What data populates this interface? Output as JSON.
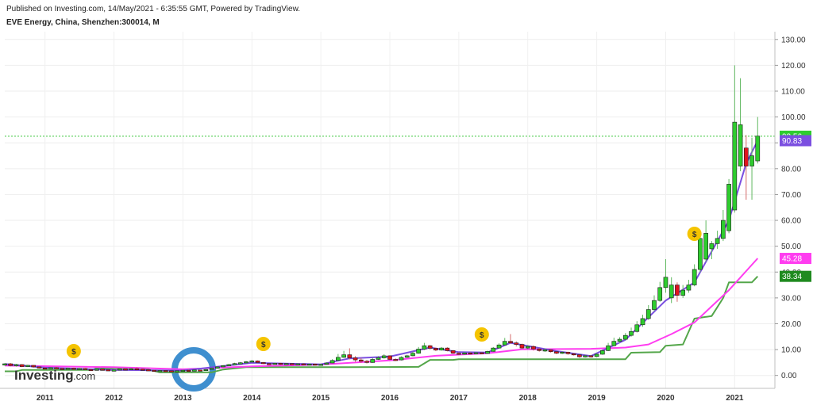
{
  "header": {
    "published": "Published on Investing.com, 14/May/2021 - 6:35:55 GMT, Powered by TradingView.",
    "symbol": "EVE Energy, China, Shenzhen:300014, M"
  },
  "logo": {
    "main": "Investing",
    "suffix": ".com"
  },
  "chart_data": {
    "type": "candlestick",
    "ylim": [
      -5,
      133
    ],
    "x_range": [
      "2010-06",
      "2021-08"
    ],
    "x_ticks": [
      {
        "date": "2011-01",
        "label": "2011"
      },
      {
        "date": "2012-01",
        "label": "2012"
      },
      {
        "date": "2013-01",
        "label": "2013"
      },
      {
        "date": "2014-01",
        "label": "2014"
      },
      {
        "date": "2015-01",
        "label": "2015"
      },
      {
        "date": "2016-01",
        "label": "2016"
      },
      {
        "date": "2017-01",
        "label": "2017"
      },
      {
        "date": "2018-01",
        "label": "2018"
      },
      {
        "date": "2019-01",
        "label": "2019"
      },
      {
        "date": "2020-01",
        "label": "2020"
      },
      {
        "date": "2021-01",
        "label": "2021"
      }
    ],
    "y_ticks": [
      {
        "value": 0,
        "label": "0.00"
      },
      {
        "value": 10,
        "label": "10.00"
      },
      {
        "value": 20,
        "label": "20.00"
      },
      {
        "value": 30,
        "label": "30.00"
      },
      {
        "value": 40,
        "label": "40.00"
      },
      {
        "value": 50,
        "label": "50.00"
      },
      {
        "value": 60,
        "label": "60.00"
      },
      {
        "value": 70,
        "label": "70.00"
      },
      {
        "value": 80,
        "label": "80.00"
      },
      {
        "value": 90,
        "label": "90.00"
      },
      {
        "value": 100,
        "label": "100.00"
      },
      {
        "value": 110,
        "label": "110.00"
      },
      {
        "value": 120,
        "label": "120.00"
      },
      {
        "value": 130,
        "label": "130.00"
      }
    ],
    "colors": {
      "up": "#2ecc2e",
      "down": "#e0141e",
      "ma_fast": "#7b4fe0",
      "ma_mid": "#ff3df0",
      "ma_slow": "#54a64a",
      "price_line": "#3cc83c"
    },
    "candles": [
      [
        "2010-06",
        4,
        4.5,
        4.7,
        3.8
      ],
      [
        "2010-07",
        4.5,
        3.8,
        4.8,
        3.5
      ],
      [
        "2010-08",
        3.8,
        4.2,
        4.5,
        3.4
      ],
      [
        "2010-09",
        4.2,
        3.4,
        4.4,
        3.2
      ],
      [
        "2010-10",
        3.4,
        3.9,
        4.1,
        3.2
      ],
      [
        "2010-11",
        3.9,
        3.3,
        4.0,
        3.0
      ],
      [
        "2010-12",
        3.3,
        2.9,
        3.5,
        2.7
      ],
      [
        "2011-01",
        2.9,
        2.6,
        3.1,
        2.4
      ],
      [
        "2011-02",
        2.6,
        3.0,
        3.2,
        2.5
      ],
      [
        "2011-03",
        3.0,
        2.7,
        3.3,
        2.5
      ],
      [
        "2011-04",
        2.7,
        2.5,
        3.0,
        2.3
      ],
      [
        "2011-05",
        2.5,
        2.8,
        3.0,
        2.3
      ],
      [
        "2011-06",
        2.8,
        2.4,
        3.0,
        2.2
      ],
      [
        "2011-07",
        2.4,
        2.7,
        2.9,
        2.2
      ],
      [
        "2011-08",
        2.7,
        2.3,
        2.9,
        2.1
      ],
      [
        "2011-09",
        2.3,
        2.1,
        2.5,
        1.9
      ],
      [
        "2011-10",
        2.1,
        2.4,
        2.6,
        1.9
      ],
      [
        "2011-11",
        2.4,
        2.2,
        2.6,
        2.0
      ],
      [
        "2011-12",
        2.2,
        1.9,
        2.4,
        1.8
      ],
      [
        "2012-01",
        1.9,
        2.1,
        2.3,
        1.8
      ],
      [
        "2012-02",
        2.1,
        2.5,
        2.7,
        2.0
      ],
      [
        "2012-03",
        2.5,
        2.3,
        2.7,
        2.1
      ],
      [
        "2012-04",
        2.3,
        2.6,
        2.9,
        2.2
      ],
      [
        "2012-05",
        2.6,
        2.4,
        3.2,
        2.2
      ],
      [
        "2012-06",
        2.4,
        2.2,
        2.6,
        2.0
      ],
      [
        "2012-07",
        2.2,
        2.0,
        2.4,
        1.8
      ],
      [
        "2012-08",
        2.0,
        1.7,
        2.2,
        1.6
      ],
      [
        "2012-09",
        1.7,
        1.9,
        2.1,
        1.6
      ],
      [
        "2012-10",
        1.9,
        1.8,
        2.0,
        1.6
      ],
      [
        "2012-11",
        1.8,
        1.5,
        1.9,
        1.4
      ],
      [
        "2012-12",
        1.5,
        1.8,
        1.9,
        1.4
      ],
      [
        "2013-01",
        1.8,
        2.0,
        2.2,
        1.7
      ],
      [
        "2013-02",
        2.0,
        1.9,
        2.3,
        1.7
      ],
      [
        "2013-03",
        1.9,
        2.1,
        2.3,
        1.8
      ],
      [
        "2013-04",
        2.1,
        1.9,
        2.2,
        1.7
      ],
      [
        "2013-05",
        1.9,
        2.3,
        2.5,
        1.8
      ],
      [
        "2013-06",
        2.3,
        2.8,
        3.0,
        2.2
      ],
      [
        "2013-07",
        2.8,
        3.3,
        3.5,
        2.7
      ],
      [
        "2013-08",
        3.3,
        3.8,
        4.0,
        3.2
      ],
      [
        "2013-09",
        3.8,
        4.2,
        4.5,
        3.6
      ],
      [
        "2013-10",
        4.2,
        4.6,
        4.9,
        4.0
      ],
      [
        "2013-11",
        4.6,
        4.9,
        5.2,
        4.4
      ],
      [
        "2013-12",
        4.9,
        5.3,
        5.6,
        4.7
      ],
      [
        "2014-01",
        5.3,
        5.6,
        6.0,
        5.1
      ],
      [
        "2014-02",
        5.6,
        5.0,
        5.8,
        4.8
      ],
      [
        "2014-03",
        5.0,
        4.6,
        5.2,
        4.4
      ],
      [
        "2014-04",
        4.6,
        4.4,
        4.8,
        4.2
      ],
      [
        "2014-05",
        4.4,
        4.7,
        4.9,
        4.2
      ],
      [
        "2014-06",
        4.7,
        4.3,
        4.9,
        4.1
      ],
      [
        "2014-07",
        4.3,
        4.6,
        4.8,
        4.1
      ],
      [
        "2014-08",
        4.6,
        4.2,
        4.8,
        4.0
      ],
      [
        "2014-09",
        4.2,
        4.5,
        4.7,
        4.0
      ],
      [
        "2014-10",
        4.5,
        4.1,
        4.7,
        3.9
      ],
      [
        "2014-11",
        4.1,
        4.4,
        4.6,
        3.9
      ],
      [
        "2014-12",
        4.4,
        4.0,
        4.6,
        3.8
      ],
      [
        "2015-01",
        4.0,
        4.3,
        4.5,
        3.8
      ],
      [
        "2015-02",
        4.3,
        4.8,
        5.1,
        4.2
      ],
      [
        "2015-03",
        4.8,
        5.8,
        6.3,
        4.7
      ],
      [
        "2015-04",
        5.8,
        7.0,
        8.3,
        5.6
      ],
      [
        "2015-05",
        7.0,
        8.0,
        9.5,
        6.8
      ],
      [
        "2015-06",
        8.0,
        6.8,
        10.5,
        6.2
      ],
      [
        "2015-07",
        6.8,
        6.0,
        7.5,
        5.2
      ],
      [
        "2015-08",
        6.0,
        5.5,
        6.8,
        4.8
      ],
      [
        "2015-09",
        5.5,
        5.0,
        6.0,
        4.6
      ],
      [
        "2015-10",
        5.0,
        6.2,
        6.8,
        4.9
      ],
      [
        "2015-11",
        6.2,
        6.8,
        7.5,
        6.0
      ],
      [
        "2015-12",
        6.8,
        7.6,
        8.2,
        6.5
      ],
      [
        "2016-01",
        7.6,
        6.2,
        7.8,
        5.8
      ],
      [
        "2016-02",
        6.2,
        6.0,
        6.6,
        5.6
      ],
      [
        "2016-03",
        6.0,
        7.0,
        7.4,
        5.8
      ],
      [
        "2016-04",
        7.0,
        7.6,
        8.0,
        6.8
      ],
      [
        "2016-05",
        7.6,
        8.6,
        9.2,
        7.4
      ],
      [
        "2016-06",
        8.6,
        10.2,
        11.0,
        8.4
      ],
      [
        "2016-07",
        10.2,
        11.5,
        12.6,
        9.8
      ],
      [
        "2016-08",
        11.5,
        10.5,
        11.8,
        10.0
      ],
      [
        "2016-09",
        10.5,
        9.8,
        10.8,
        9.4
      ],
      [
        "2016-10",
        9.8,
        10.6,
        11.0,
        9.6
      ],
      [
        "2016-11",
        10.6,
        9.6,
        10.9,
        9.3
      ],
      [
        "2016-12",
        9.6,
        8.6,
        9.8,
        8.3
      ],
      [
        "2017-01",
        8.6,
        8.2,
        9.0,
        7.9
      ],
      [
        "2017-02",
        8.2,
        8.7,
        9.0,
        8.0
      ],
      [
        "2017-03",
        8.7,
        8.4,
        9.0,
        8.1
      ],
      [
        "2017-04",
        8.4,
        8.8,
        9.1,
        8.2
      ],
      [
        "2017-05",
        8.8,
        8.5,
        9.0,
        8.2
      ],
      [
        "2017-06",
        8.5,
        9.3,
        9.6,
        8.4
      ],
      [
        "2017-07",
        9.3,
        10.6,
        11.0,
        9.2
      ],
      [
        "2017-08",
        10.6,
        11.8,
        12.4,
        10.4
      ],
      [
        "2017-09",
        11.8,
        13.2,
        14.5,
        11.6
      ],
      [
        "2017-10",
        13.2,
        12.6,
        16.0,
        12.2
      ],
      [
        "2017-11",
        12.6,
        12.0,
        13.2,
        11.2
      ],
      [
        "2017-12",
        12.0,
        10.6,
        12.3,
        10.2
      ],
      [
        "2018-01",
        10.6,
        11.2,
        11.8,
        10.1
      ],
      [
        "2018-02",
        11.2,
        10.2,
        11.6,
        9.6
      ],
      [
        "2018-03",
        10.2,
        9.6,
        10.6,
        9.2
      ],
      [
        "2018-04",
        9.6,
        9.9,
        10.4,
        9.1
      ],
      [
        "2018-05",
        9.9,
        9.2,
        10.2,
        8.8
      ],
      [
        "2018-06",
        9.2,
        8.6,
        9.4,
        8.2
      ],
      [
        "2018-07",
        8.6,
        9.0,
        9.3,
        8.3
      ],
      [
        "2018-08",
        9.0,
        8.4,
        9.2,
        8.0
      ],
      [
        "2018-09",
        8.4,
        8.0,
        8.6,
        7.7
      ],
      [
        "2018-10",
        8.0,
        7.2,
        8.2,
        6.8
      ],
      [
        "2018-11",
        7.2,
        7.6,
        8.0,
        6.9
      ],
      [
        "2018-12",
        7.6,
        7.3,
        7.9,
        6.9
      ],
      [
        "2019-01",
        7.3,
        8.2,
        8.6,
        7.1
      ],
      [
        "2019-02",
        8.2,
        9.6,
        10.0,
        8.0
      ],
      [
        "2019-03",
        9.6,
        11.5,
        12.6,
        9.4
      ],
      [
        "2019-04",
        11.5,
        13.2,
        14.6,
        11.2
      ],
      [
        "2019-05",
        13.2,
        14.0,
        14.8,
        12.5
      ],
      [
        "2019-06",
        14.0,
        15.5,
        16.4,
        13.6
      ],
      [
        "2019-07",
        15.5,
        17.0,
        18.5,
        15.0
      ],
      [
        "2019-08",
        17.0,
        19.6,
        21.0,
        16.6
      ],
      [
        "2019-09",
        19.6,
        22.0,
        23.5,
        18.8
      ],
      [
        "2019-10",
        22.0,
        25.5,
        27.2,
        21.5
      ],
      [
        "2019-11",
        25.5,
        29.0,
        31.0,
        24.8
      ],
      [
        "2019-12",
        29.0,
        34.0,
        36.2,
        28.5
      ],
      [
        "2020-01",
        34.0,
        38.0,
        45.0,
        32.0
      ],
      [
        "2020-02",
        30.0,
        35.0,
        38.0,
        28.0
      ],
      [
        "2020-03",
        35.0,
        31.0,
        36.0,
        28.5
      ],
      [
        "2020-04",
        31.0,
        33.0,
        35.0,
        30.0
      ],
      [
        "2020-05",
        33.0,
        35.0,
        37.0,
        32.0
      ],
      [
        "2020-06",
        35.0,
        41.0,
        43.0,
        34.5
      ],
      [
        "2020-07",
        41.0,
        53.0,
        55.0,
        40.0
      ],
      [
        "2020-08",
        45.0,
        55.0,
        60.0,
        44.0
      ],
      [
        "2020-09",
        49.0,
        51.0,
        52.0,
        45.0
      ],
      [
        "2020-10",
        51.0,
        53.0,
        56.0,
        49.0
      ],
      [
        "2020-11",
        53.0,
        60.0,
        64.0,
        52.0
      ],
      [
        "2020-12",
        56.0,
        74.0,
        76.0,
        55.0
      ],
      [
        "2021-01",
        64.0,
        98.0,
        120.0,
        63.0
      ],
      [
        "2021-02",
        81.0,
        97.0,
        115.0,
        79.0
      ],
      [
        "2021-03",
        88.0,
        81.0,
        93.0,
        68.0
      ],
      [
        "2021-04",
        81.0,
        85.0,
        92.0,
        68.0
      ],
      [
        "2021-05",
        83.0,
        92.6,
        100.0,
        82.0
      ]
    ],
    "ma_fast": [
      [
        "2010-06",
        4.4
      ],
      [
        "2011-01",
        3.0
      ],
      [
        "2012-01",
        2.1
      ],
      [
        "2013-01",
        1.9
      ],
      [
        "2014-01",
        4.9
      ],
      [
        "2015-01",
        4.3
      ],
      [
        "2015-06",
        6.6
      ],
      [
        "2016-01",
        7.3
      ],
      [
        "2016-08",
        10.8
      ],
      [
        "2017-01",
        9.0
      ],
      [
        "2017-06",
        8.9
      ],
      [
        "2017-10",
        12.6
      ],
      [
        "2018-06",
        9.4
      ],
      [
        "2018-12",
        7.5
      ],
      [
        "2019-06",
        13.8
      ],
      [
        "2020-01",
        29.0
      ],
      [
        "2020-06",
        36.0
      ],
      [
        "2020-12",
        60.0
      ],
      [
        "2021-03",
        82.0
      ],
      [
        "2021-05",
        90.83
      ]
    ],
    "ma_mid": [
      [
        "2010-06",
        3.8
      ],
      [
        "2012-01",
        3.2
      ],
      [
        "2013-01",
        2.4
      ],
      [
        "2014-01",
        3.5
      ],
      [
        "2015-01",
        4.2
      ],
      [
        "2016-01",
        5.8
      ],
      [
        "2016-09",
        7.6
      ],
      [
        "2017-06",
        8.6
      ],
      [
        "2017-12",
        10.1
      ],
      [
        "2018-12",
        10.3
      ],
      [
        "2019-06",
        10.8
      ],
      [
        "2019-10",
        12.0
      ],
      [
        "2020-02",
        16.0
      ],
      [
        "2020-06",
        20.5
      ],
      [
        "2020-12",
        33.0
      ],
      [
        "2021-05",
        45.28
      ]
    ],
    "ma_slow": [
      [
        "2010-06",
        1.6
      ],
      [
        "2010-08",
        1.6
      ],
      [
        "2010-09",
        2.1
      ],
      [
        "2011-09",
        2.1
      ],
      [
        "2011-10",
        2.8
      ],
      [
        "2012-06",
        2.8
      ],
      [
        "2012-09",
        1.2
      ],
      [
        "2013-06",
        1.2
      ],
      [
        "2013-08",
        2.3
      ],
      [
        "2013-12",
        3.2
      ],
      [
        "2015-06",
        3.2
      ],
      [
        "2016-06",
        3.3
      ],
      [
        "2016-08",
        6.0
      ],
      [
        "2016-12",
        6.0
      ],
      [
        "2017-01",
        6.3
      ],
      [
        "2019-06",
        6.3
      ],
      [
        "2019-07",
        8.8
      ],
      [
        "2019-12",
        9.0
      ],
      [
        "2020-01",
        11.5
      ],
      [
        "2020-04",
        12.0
      ],
      [
        "2020-06",
        22.0
      ],
      [
        "2020-09",
        23.0
      ],
      [
        "2020-11",
        30.0
      ],
      [
        "2020-12",
        36.0
      ],
      [
        "2021-04",
        36.0
      ],
      [
        "2021-05",
        38.34
      ]
    ],
    "dividend_markers": [
      {
        "date": "2011-06",
        "label": "$"
      },
      {
        "date": "2014-03",
        "label": "$"
      },
      {
        "date": "2017-05",
        "label": "$"
      },
      {
        "date": "2020-06",
        "label": "$"
      }
    ],
    "last_price_tags": [
      {
        "value": 92.56,
        "label": "92.56",
        "color": "#2ecc2e"
      },
      {
        "value": 90.83,
        "label": "90.83",
        "color": "#7b4fe0"
      },
      {
        "value": 45.28,
        "label": "45.28",
        "color": "#ff3df0"
      },
      {
        "value": 38.34,
        "label": "38.34",
        "color": "#1f8a1f"
      }
    ]
  }
}
